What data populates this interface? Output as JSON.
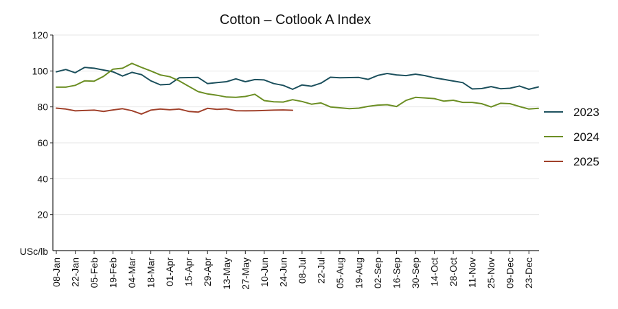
{
  "chart_data": {
    "type": "line",
    "title": "Cotton – Cotlook A Index",
    "ylabel": "USc/lb",
    "xlabel": "",
    "ylim": [
      0,
      120
    ],
    "yticks": [
      20,
      40,
      60,
      80,
      100,
      120
    ],
    "grid": "horizontal",
    "legend_position": "right",
    "x_tick_labels": [
      "08-Jan",
      "22-Jan",
      "05-Feb",
      "19-Feb",
      "04-Mar",
      "18-Mar",
      "01-Apr",
      "15-Apr",
      "29-Apr",
      "13-May",
      "27-May",
      "10-Jun",
      "24-Jun",
      "08-Jul",
      "22-Jul",
      "05-Aug",
      "19-Aug",
      "02-Sep",
      "16-Sep",
      "30-Sep",
      "14-Oct",
      "28-Oct",
      "11-Nov",
      "25-Nov",
      "09-Dec",
      "23-Dec"
    ],
    "x_week_start": 1,
    "x_week_end": 52,
    "series": [
      {
        "name": "2023",
        "color": "#1b4f5c",
        "values": [
          99.5,
          100.8,
          99,
          102,
          101.5,
          100.5,
          99.5,
          97.2,
          99.2,
          98,
          94.5,
          92.3,
          92.6,
          96.2,
          96.3,
          96.4,
          93,
          93.5,
          94,
          95.6,
          94,
          95.2,
          95,
          93,
          92,
          89.8,
          92.2,
          91.5,
          93.2,
          96.5,
          96.2,
          96.3,
          96.4,
          95.3,
          97.5,
          98.6,
          97.8,
          97.4,
          98.2,
          97.4,
          96.2,
          95.3,
          94.4,
          93.5,
          90,
          90.2,
          91.3,
          90.1,
          90.4,
          91.6,
          89.8,
          91.1
        ]
      },
      {
        "name": "2024",
        "color": "#6b8e23",
        "values": [
          91,
          91,
          92,
          94.5,
          94.3,
          97,
          101,
          101.5,
          104.2,
          102,
          100,
          97.8,
          96.8,
          94.5,
          91.5,
          88.5,
          87.2,
          86.5,
          85.5,
          85.3,
          85.8,
          87,
          83.5,
          82.8,
          82.7,
          84,
          83,
          81.5,
          82.2,
          80,
          79.5,
          79,
          79.3,
          80.3,
          81,
          81.2,
          80.2,
          83.6,
          85.3,
          85,
          84.6,
          83.2,
          83.7,
          82.5,
          82.5,
          81.8,
          80,
          82,
          81.8,
          80.2,
          78.8,
          79.2
        ]
      },
      {
        "name": "2025",
        "color": "#a0402a",
        "values": [
          79.3,
          78.8,
          77.8,
          78,
          78.2,
          77.5,
          78.3,
          79,
          77.9,
          76,
          78.2,
          78.8,
          78.4,
          78.8,
          77.5,
          77.1,
          79.2,
          78.6,
          78.9,
          77.9,
          77.8,
          77.9,
          78,
          78.2,
          78.3,
          78.1
        ]
      }
    ]
  }
}
